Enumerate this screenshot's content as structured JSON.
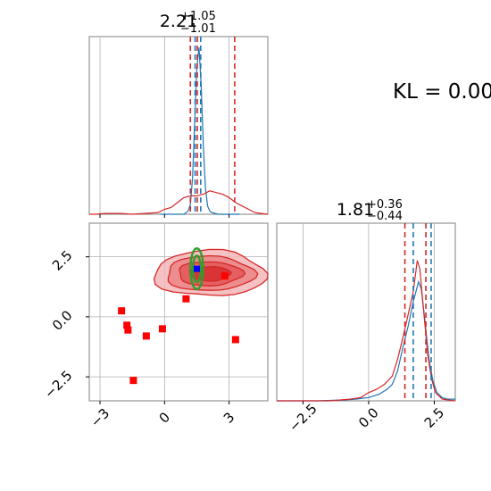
{
  "chart_data": [
    {
      "type": "histogram",
      "panel": "marginal-param-1",
      "title": {
        "median": "2.21",
        "plus": "+1.05",
        "minus": "−1.01"
      },
      "xlim": [
        -3.5,
        4.8
      ],
      "xticks": [
        -3,
        0,
        3
      ],
      "show_tick_labels": false,
      "grid": true,
      "series": [
        {
          "color": "#1f77b4",
          "bins": [
            [
              -0.2,
              0
            ],
            [
              0.0,
              0
            ],
            [
              0.3,
              0
            ],
            [
              0.6,
              0
            ],
            [
              0.9,
              0
            ],
            [
              1.1,
              0.02
            ],
            [
              1.2,
              0.06
            ],
            [
              1.3,
              0.22
            ],
            [
              1.4,
              0.55
            ],
            [
              1.5,
              0.88
            ],
            [
              1.6,
              1.0
            ],
            [
              1.7,
              0.78
            ],
            [
              1.8,
              0.42
            ],
            [
              1.9,
              0.16
            ],
            [
              2.0,
              0.05
            ],
            [
              2.1,
              0.02
            ],
            [
              2.2,
              0.01
            ],
            [
              2.5,
              0
            ],
            [
              3.0,
              0
            ],
            [
              3.5,
              0
            ]
          ]
        },
        {
          "color": "#d62728",
          "bins": [
            [
              -3.5,
              0
            ],
            [
              -3.2,
              0
            ],
            [
              -2.8,
              0.005
            ],
            [
              -2.0,
              0.005
            ],
            [
              -1.5,
              0
            ],
            [
              -0.3,
              0.01
            ],
            [
              0.0,
              0.03
            ],
            [
              0.3,
              0.04
            ],
            [
              0.6,
              0.07
            ],
            [
              0.9,
              0.1
            ],
            [
              1.2,
              0.11
            ],
            [
              1.5,
              0.11
            ],
            [
              1.8,
              0.12
            ],
            [
              2.1,
              0.14
            ],
            [
              2.4,
              0.13
            ],
            [
              2.7,
              0.12
            ],
            [
              3.0,
              0.1
            ],
            [
              3.3,
              0.07
            ],
            [
              3.6,
              0.05
            ],
            [
              3.9,
              0.03
            ],
            [
              4.2,
              0.01
            ],
            [
              4.5,
              0.005
            ],
            [
              4.8,
              0
            ]
          ]
        }
      ],
      "vlines": [
        {
          "x": 1.2,
          "color": "#d62728"
        },
        {
          "x": 1.42,
          "color": "#1f77b4"
        },
        {
          "x": 1.52,
          "color": "#d62728"
        },
        {
          "x": 1.68,
          "color": "#1f77b4"
        },
        {
          "x": 3.26,
          "color": "#d62728"
        }
      ]
    },
    {
      "type": "scatter",
      "panel": "joint-param-1-param-2",
      "xlim": [
        -3.5,
        4.8
      ],
      "ylim": [
        -3.5,
        3.9
      ],
      "xticks": [
        -3,
        0,
        3
      ],
      "yticks": [
        -2.5,
        0.0,
        2.5
      ],
      "xtick_labels": [
        "−3",
        "0",
        "3"
      ],
      "ytick_labels": [
        "−2.5",
        "0.0",
        "2.5"
      ],
      "grid": true,
      "red_density_center": [
        2.1,
        1.8
      ],
      "green_ellipse": {
        "center": [
          1.5,
          2.0
        ],
        "color": "#2ca02c"
      },
      "blue_marker": [
        1.5,
        2.0
      ],
      "red_squares": [
        [
          -2.0,
          0.25
        ],
        [
          -1.75,
          -0.35
        ],
        [
          -1.7,
          -0.55
        ],
        [
          -1.45,
          -2.65
        ],
        [
          -0.85,
          -0.8
        ],
        [
          -0.1,
          -0.5
        ],
        [
          1.0,
          0.75
        ],
        [
          2.8,
          1.7
        ],
        [
          3.3,
          -0.95
        ]
      ]
    },
    {
      "type": "histogram",
      "panel": "marginal-param-2",
      "title": {
        "median": "1.81",
        "plus": "+0.36",
        "minus": "−0.44"
      },
      "xlim": [
        -3.5,
        3.3
      ],
      "xticks": [
        -2.5,
        0.0,
        2.5
      ],
      "xtick_labels": [
        "−2.5",
        "0.0",
        "2.5"
      ],
      "grid": true,
      "series": [
        {
          "color": "#1f77b4",
          "bins": [
            [
              -3.5,
              0
            ],
            [
              -2.0,
              0
            ],
            [
              -1.0,
              0.005
            ],
            [
              -0.5,
              0.01
            ],
            [
              0.0,
              0.02
            ],
            [
              0.4,
              0.04
            ],
            [
              0.7,
              0.07
            ],
            [
              0.9,
              0.1
            ],
            [
              1.1,
              0.18
            ],
            [
              1.3,
              0.32
            ],
            [
              1.5,
              0.45
            ],
            [
              1.7,
              0.6
            ],
            [
              1.9,
              0.72
            ],
            [
              2.0,
              0.68
            ],
            [
              2.1,
              0.55
            ],
            [
              2.2,
              0.4
            ],
            [
              2.3,
              0.25
            ],
            [
              2.45,
              0.12
            ],
            [
              2.6,
              0.05
            ],
            [
              2.8,
              0.02
            ],
            [
              3.0,
              0.01
            ],
            [
              3.3,
              0.01
            ]
          ]
        },
        {
          "color": "#d62728",
          "bins": [
            [
              -3.5,
              0
            ],
            [
              -1.5,
              0
            ],
            [
              -0.7,
              0.01
            ],
            [
              -0.3,
              0.02
            ],
            [
              0.0,
              0.05
            ],
            [
              0.3,
              0.07
            ],
            [
              0.6,
              0.1
            ],
            [
              0.9,
              0.15
            ],
            [
              1.1,
              0.25
            ],
            [
              1.3,
              0.38
            ],
            [
              1.5,
              0.52
            ],
            [
              1.7,
              0.66
            ],
            [
              1.85,
              0.85
            ],
            [
              1.95,
              0.8
            ],
            [
              2.05,
              0.62
            ],
            [
              2.15,
              0.45
            ],
            [
              2.25,
              0.28
            ],
            [
              2.4,
              0.13
            ],
            [
              2.55,
              0.05
            ],
            [
              2.8,
              0.01
            ],
            [
              3.3,
              0
            ]
          ]
        }
      ],
      "vlines": [
        {
          "x": 1.38,
          "color": "#d62728"
        },
        {
          "x": 1.7,
          "color": "#1f77b4"
        },
        {
          "x": 2.18,
          "color": "#d62728"
        },
        {
          "x": 2.38,
          "color": "#1f77b4"
        }
      ]
    }
  ],
  "annotation": {
    "kl": "KL = 0.00"
  }
}
